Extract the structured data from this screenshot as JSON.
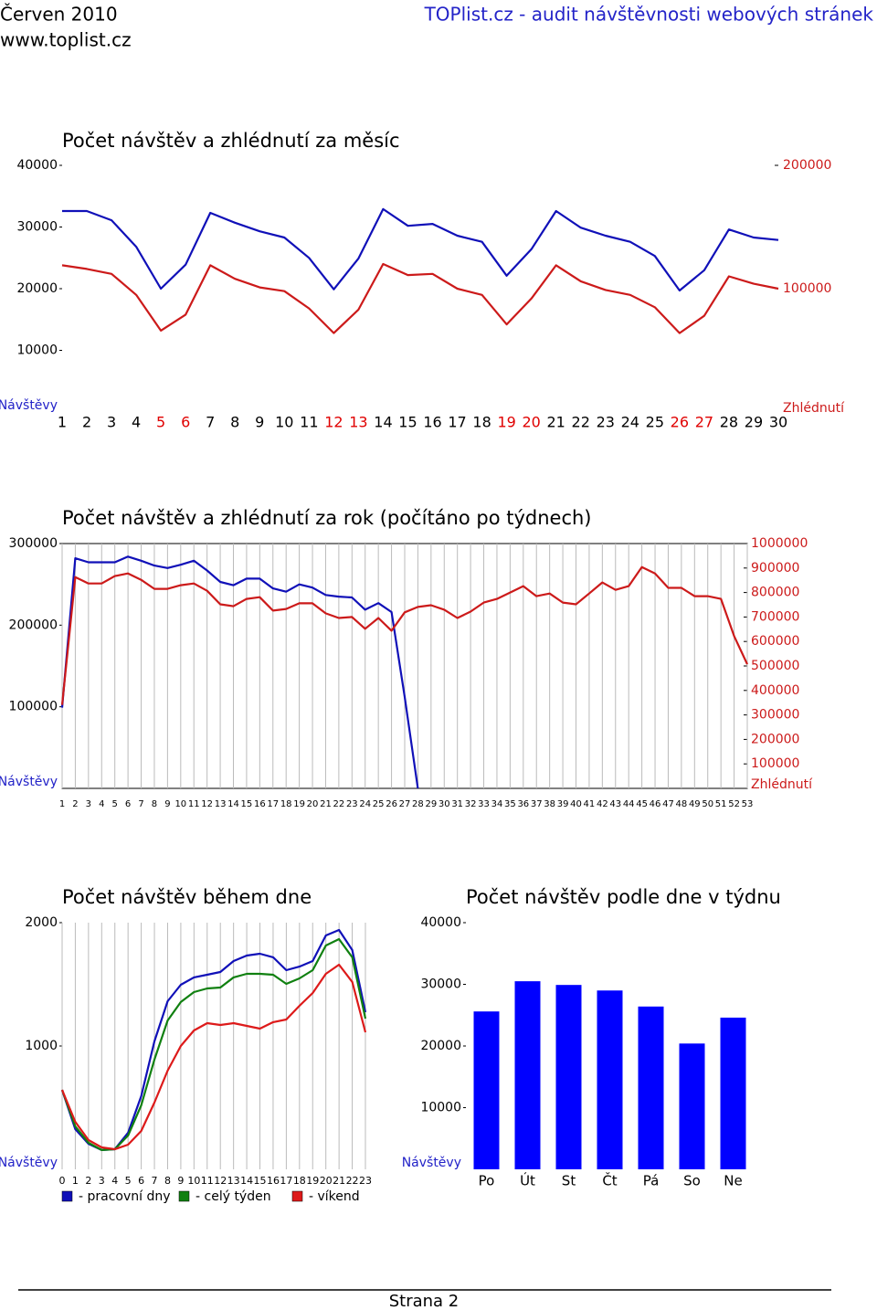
{
  "header": {
    "month": "Červen 2010",
    "site": "TOPlist.cz - audit návštěvnosti webových stránek",
    "url": "www.toplist.cz"
  },
  "chart_data": [
    {
      "type": "line",
      "title": "Počet návštěv a zhlédnutí za měsíc",
      "ylabel": "Návštěvy",
      "y2label": "Zhlédnutí",
      "categories": [
        "1",
        "2",
        "3",
        "4",
        "5",
        "6",
        "7",
        "8",
        "9",
        "10",
        "11",
        "12",
        "13",
        "14",
        "15",
        "16",
        "17",
        "18",
        "19",
        "20",
        "21",
        "22",
        "23",
        "24",
        "25",
        "26",
        "27",
        "28",
        "29",
        "30"
      ],
      "category_colors": [
        "#000000",
        "#000000",
        "#000000",
        "#000000",
        "#e00000",
        "#e00000",
        "#000000",
        "#000000",
        "#000000",
        "#000000",
        "#000000",
        "#e00000",
        "#e00000",
        "#000000",
        "#000000",
        "#000000",
        "#000000",
        "#000000",
        "#e00000",
        "#e00000",
        "#000000",
        "#000000",
        "#000000",
        "#000000",
        "#000000",
        "#e00000",
        "#e00000",
        "#000000",
        "#000000",
        "#000000"
      ],
      "ylim": [
        0,
        40000
      ],
      "yticks": [
        10000,
        20000,
        30000,
        40000
      ],
      "y2lim": [
        0,
        200000
      ],
      "y2ticks": [
        100000,
        200000
      ],
      "xgrid": false,
      "series": [
        {
          "name": "Návštěvy",
          "color": "#1010b8",
          "values": [
            32600,
            32600,
            31100,
            26800,
            20000,
            23900,
            32300,
            30700,
            29300,
            28300,
            25000,
            19900,
            24900,
            32900,
            30200,
            30500,
            28600,
            27600,
            22100,
            26400,
            32600,
            29900,
            28600,
            27600,
            25300,
            19700,
            23000,
            29600,
            28300,
            27900
          ]
        },
        {
          "name": "Zhlédnutí",
          "color": "#cc1a1a",
          "axis": "y2",
          "values": [
            119000,
            116000,
            112000,
            95000,
            66000,
            79000,
            119000,
            108000,
            101000,
            98000,
            84000,
            64000,
            83000,
            120000,
            111000,
            112000,
            100000,
            95000,
            71000,
            92000,
            119000,
            106000,
            99000,
            95000,
            85000,
            64000,
            78000,
            110000,
            104000,
            100000
          ]
        }
      ]
    },
    {
      "type": "line",
      "title": "Počet návštěv a zhlédnutí za rok (počítáno po týdnech)",
      "ylabel": "Návštěvy",
      "y2label": "Zhlédnutí",
      "categories": [
        "1",
        "2",
        "3",
        "4",
        "5",
        "6",
        "7",
        "8",
        "9",
        "10",
        "11",
        "12",
        "13",
        "14",
        "15",
        "16",
        "17",
        "18",
        "19",
        "20",
        "21",
        "22",
        "23",
        "24",
        "25",
        "26",
        "27",
        "28",
        "29",
        "30",
        "31",
        "32",
        "33",
        "34",
        "35",
        "36",
        "37",
        "38",
        "39",
        "40",
        "41",
        "42",
        "43",
        "44",
        "45",
        "46",
        "47",
        "48",
        "49",
        "50",
        "51",
        "52",
        "53"
      ],
      "ylim": [
        0,
        300000
      ],
      "yticks": [
        100000,
        200000,
        300000
      ],
      "y2lim": [
        0,
        1000000
      ],
      "y2ticks": [
        100000,
        200000,
        300000,
        400000,
        500000,
        600000,
        700000,
        800000,
        900000,
        1000000
      ],
      "xgrid": true,
      "series": [
        {
          "name": "Návštěvy",
          "color": "#1010b8",
          "values": [
            99000,
            282000,
            277000,
            277000,
            277000,
            284000,
            279000,
            273000,
            270000,
            274000,
            279000,
            267000,
            253000,
            249000,
            257000,
            257000,
            245000,
            241000,
            250000,
            246000,
            237000,
            235000,
            234000,
            219000,
            227000,
            216000,
            112000,
            0,
            null,
            null,
            null,
            null,
            null,
            null,
            null,
            null,
            null,
            null,
            null,
            null,
            null,
            null,
            null,
            null,
            null,
            null,
            null,
            null,
            null,
            null,
            null,
            null,
            null
          ]
        },
        {
          "name": "Zhlédnutí",
          "color": "#cc1a1a",
          "axis": "y2",
          "values": [
            341000,
            863000,
            837000,
            837000,
            867000,
            878000,
            852000,
            815000,
            815000,
            830000,
            837000,
            807000,
            752000,
            744000,
            774000,
            781000,
            726000,
            733000,
            756000,
            756000,
            715000,
            696000,
            700000,
            652000,
            696000,
            644000,
            719000,
            741000,
            748000,
            730000,
            696000,
            722000,
            759000,
            774000,
            800000,
            826000,
            785000,
            796000,
            759000,
            752000,
            796000,
            841000,
            811000,
            826000,
            904000,
            878000,
            819000,
            819000,
            785000,
            785000,
            774000,
            622000,
            507000
          ]
        }
      ]
    },
    {
      "type": "line",
      "title": "Počet návštěv během dne",
      "ylabel": "Návštěvy",
      "categories": [
        "0",
        "1",
        "2",
        "3",
        "4",
        "5",
        "6",
        "7",
        "8",
        "9",
        "10",
        "11",
        "12",
        "13",
        "14",
        "15",
        "16",
        "17",
        "18",
        "19",
        "20",
        "21",
        "22",
        "23"
      ],
      "ylim": [
        0,
        2000
      ],
      "yticks": [
        1000,
        2000
      ],
      "xgrid": true,
      "series": [
        {
          "name": "- pracovní dny",
          "color": "#1010b8",
          "values": [
            644,
            326,
            207,
            156,
            163,
            296,
            593,
            1037,
            1363,
            1496,
            1556,
            1578,
            1600,
            1689,
            1733,
            1748,
            1719,
            1615,
            1644,
            1689,
            1896,
            1941,
            1778,
            1274
          ]
        },
        {
          "name": "- celý týden",
          "color": "#108010",
          "values": [
            644,
            348,
            215,
            156,
            163,
            274,
            519,
            889,
            1207,
            1356,
            1437,
            1467,
            1474,
            1556,
            1585,
            1585,
            1578,
            1504,
            1548,
            1615,
            1815,
            1867,
            1719,
            1222
          ]
        },
        {
          "name": "- víkend",
          "color": "#dd1a1a",
          "values": [
            644,
            385,
            237,
            178,
            163,
            200,
            311,
            541,
            800,
            1000,
            1126,
            1185,
            1170,
            1185,
            1163,
            1141,
            1193,
            1215,
            1326,
            1430,
            1585,
            1659,
            1519,
            1111
          ]
        }
      ]
    },
    {
      "type": "bar",
      "title": "Počet návštěv podle dne v týdnu",
      "ylabel": "Návštěvy",
      "categories": [
        "Po",
        "Út",
        "St",
        "Čt",
        "Pá",
        "So",
        "Ne"
      ],
      "ylim": [
        0,
        40000
      ],
      "yticks": [
        10000,
        20000,
        30000,
        40000
      ],
      "color": "#0000ff",
      "values": [
        25600,
        30500,
        29900,
        29000,
        26400,
        20400,
        24600
      ]
    }
  ],
  "footer": {
    "page": "Strana 2"
  }
}
